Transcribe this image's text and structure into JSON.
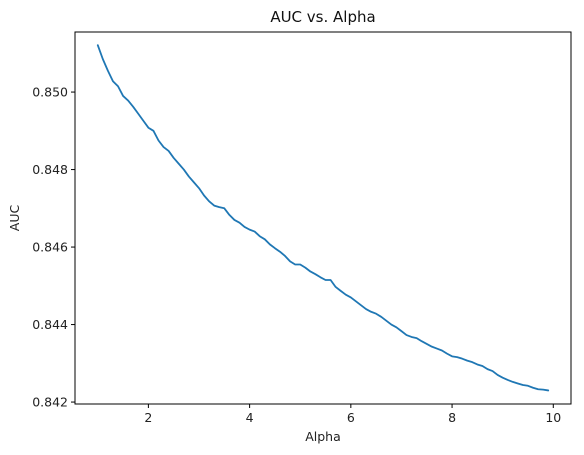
{
  "chart_data": {
    "type": "line",
    "title": "AUC vs. Alpha",
    "xlabel": "Alpha",
    "ylabel": "AUC",
    "xlim": [
      0.55,
      10.35
    ],
    "ylim": [
      0.84195,
      0.85155
    ],
    "xticks": [
      2,
      4,
      6,
      8,
      10
    ],
    "yticks": [
      0.842,
      0.844,
      0.846,
      0.848,
      0.85
    ],
    "xtick_labels": [
      "2",
      "4",
      "6",
      "8",
      "10"
    ],
    "ytick_labels": [
      "0.842",
      "0.844",
      "0.846",
      "0.848",
      "0.850"
    ],
    "grid": false,
    "series": [
      {
        "name": "AUC",
        "color": "#1f77b4",
        "x": [
          1.0,
          1.1,
          1.2,
          1.3,
          1.4,
          1.5,
          1.6,
          1.7,
          1.8,
          1.9,
          2.0,
          2.1,
          2.2,
          2.3,
          2.4,
          2.5,
          2.6,
          2.7,
          2.8,
          2.9,
          3.0,
          3.1,
          3.2,
          3.3,
          3.4,
          3.5,
          3.6,
          3.7,
          3.8,
          3.9,
          4.0,
          4.1,
          4.2,
          4.3,
          4.4,
          4.5,
          4.6,
          4.7,
          4.8,
          4.9,
          5.0,
          5.1,
          5.2,
          5.3,
          5.4,
          5.5,
          5.6,
          5.7,
          5.8,
          5.9,
          6.0,
          6.1,
          6.2,
          6.3,
          6.4,
          6.5,
          6.6,
          6.7,
          6.8,
          6.9,
          7.0,
          7.1,
          7.2,
          7.3,
          7.4,
          7.5,
          7.6,
          7.7,
          7.8,
          7.9,
          8.0,
          8.1,
          8.2,
          8.3,
          8.4,
          8.5,
          8.6,
          8.7,
          8.8,
          8.9,
          9.0,
          9.1,
          9.2,
          9.3,
          9.4,
          9.5,
          9.6,
          9.7,
          9.8,
          9.9
        ],
        "values": [
          0.85121,
          0.85085,
          0.85055,
          0.85028,
          0.85015,
          0.8499,
          0.84978,
          0.84962,
          0.84944,
          0.84926,
          0.84908,
          0.849,
          0.84875,
          0.84858,
          0.84848,
          0.8483,
          0.84815,
          0.848,
          0.84782,
          0.84767,
          0.84752,
          0.84733,
          0.84718,
          0.84707,
          0.84703,
          0.847,
          0.84683,
          0.8467,
          0.84663,
          0.84652,
          0.84645,
          0.8464,
          0.84628,
          0.8462,
          0.84607,
          0.84597,
          0.84588,
          0.84577,
          0.84563,
          0.84555,
          0.84555,
          0.84547,
          0.84537,
          0.8453,
          0.84522,
          0.84515,
          0.84515,
          0.84497,
          0.84487,
          0.84477,
          0.8447,
          0.8446,
          0.8445,
          0.8444,
          0.84433,
          0.84428,
          0.8442,
          0.8441,
          0.844,
          0.84393,
          0.84383,
          0.84373,
          0.84368,
          0.84365,
          0.84357,
          0.8435,
          0.84343,
          0.84338,
          0.84333,
          0.84325,
          0.84318,
          0.84316,
          0.84312,
          0.84307,
          0.84303,
          0.84297,
          0.84293,
          0.84285,
          0.8428,
          0.8427,
          0.84263,
          0.84257,
          0.84252,
          0.84248,
          0.84244,
          0.84242,
          0.84237,
          0.84233,
          0.84232,
          0.8423
        ]
      }
    ]
  }
}
